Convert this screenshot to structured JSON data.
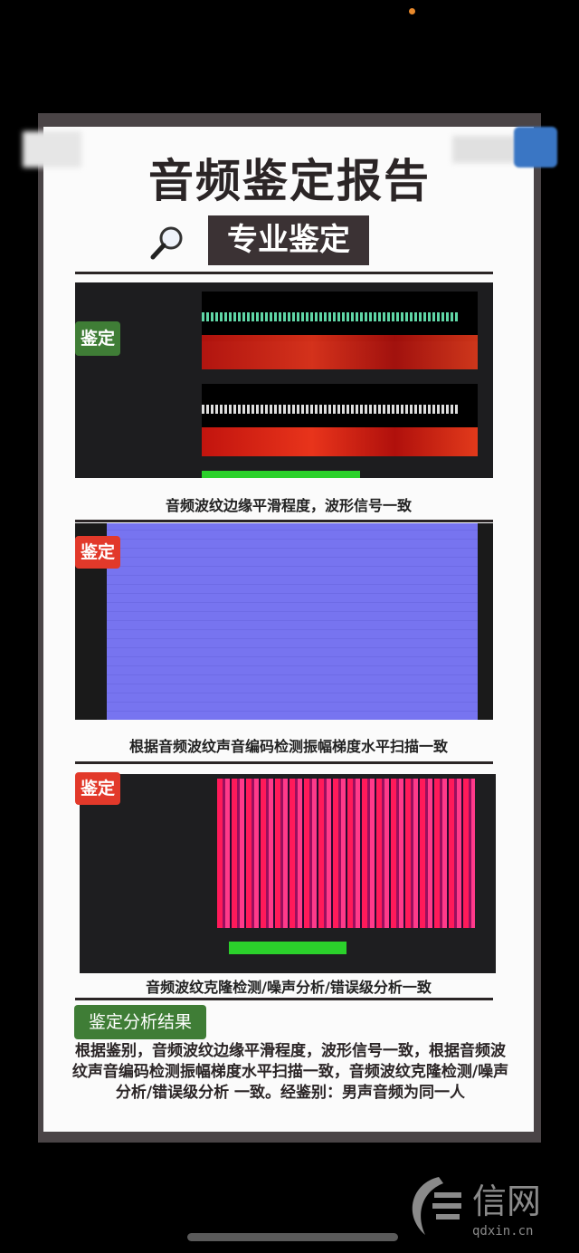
{
  "title": "音频鉴定报告",
  "subtitle": "专业鉴定",
  "sections": [
    {
      "badge": "鉴定",
      "badge_color": "#3f7d36",
      "caption": "音频波纹边缘平滑程度，波形信号一致"
    },
    {
      "badge": "鉴定",
      "badge_color": "#e2392a",
      "caption": "根据音频波纹声音编码检测振幅梯度水平扫描一致"
    },
    {
      "badge": "鉴定",
      "badge_color": "#e2392a",
      "caption": "音频波纹克隆检测/噪声分析/错误级分析一致"
    }
  ],
  "result": {
    "badge": "鉴定分析结果",
    "badge_color": "#3f7d36",
    "text": "根据鉴别，音频波纹边缘平滑程度，波形信号一致，根据音频波纹声音编码检测振幅梯度水平扫描一致，音频波纹克隆检测/噪声分析/错误级分析 一致。经鉴别：男声音频为同一人"
  },
  "watermark": {
    "logo_text": "信网",
    "domain": "qdxin.cn"
  }
}
